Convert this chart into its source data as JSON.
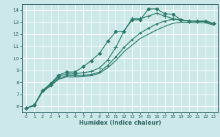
{
  "background_color": "#cce8e8",
  "grid_color": "#ffffff",
  "line_color": "#2a7a6a",
  "xlabel": "Humidex (Indice chaleur)",
  "xlim": [
    -0.5,
    23.5
  ],
  "ylim": [
    5.5,
    14.5
  ],
  "yticks": [
    6,
    7,
    8,
    9,
    10,
    11,
    12,
    13,
    14
  ],
  "xticks": [
    0,
    1,
    2,
    3,
    4,
    5,
    6,
    7,
    8,
    9,
    10,
    11,
    12,
    13,
    14,
    15,
    16,
    17,
    18,
    19,
    20,
    21,
    22,
    23
  ],
  "series": [
    {
      "x": [
        0,
        1,
        2,
        3,
        4,
        5,
        6,
        7,
        8,
        9,
        10,
        11,
        12,
        13,
        14,
        15,
        16,
        17,
        18,
        19,
        20,
        21,
        22,
        23
      ],
      "y": [
        5.85,
        6.1,
        7.3,
        7.9,
        8.6,
        8.85,
        8.85,
        9.3,
        9.8,
        10.4,
        11.4,
        12.2,
        12.25,
        13.2,
        13.2,
        14.1,
        14.1,
        13.7,
        13.65,
        13.2,
        13.1,
        13.1,
        13.1,
        12.9
      ],
      "marker": "D",
      "markersize": 2.5,
      "linestyle": "-",
      "linewidth": 0.9
    },
    {
      "x": [
        0,
        1,
        2,
        3,
        4,
        5,
        6,
        7,
        8,
        9,
        10,
        11,
        12,
        13,
        14,
        15,
        16,
        17,
        18,
        19,
        20,
        21,
        22,
        23
      ],
      "y": [
        5.85,
        6.1,
        7.3,
        7.8,
        8.5,
        8.7,
        8.7,
        8.8,
        8.9,
        9.2,
        9.85,
        10.9,
        12.25,
        13.3,
        13.3,
        13.5,
        13.75,
        13.5,
        13.3,
        13.15,
        13.1,
        13.1,
        13.1,
        12.88
      ],
      "marker": "+",
      "markersize": 4,
      "linestyle": "-",
      "linewidth": 0.9
    },
    {
      "x": [
        0,
        1,
        2,
        3,
        4,
        5,
        6,
        7,
        8,
        9,
        10,
        11,
        12,
        13,
        14,
        15,
        16,
        17,
        18,
        19,
        20,
        21,
        22,
        23
      ],
      "y": [
        5.85,
        6.05,
        7.25,
        7.75,
        8.35,
        8.55,
        8.55,
        8.6,
        8.65,
        8.85,
        9.4,
        10.1,
        10.9,
        11.55,
        12.1,
        12.5,
        12.85,
        13.1,
        13.25,
        13.2,
        13.1,
        13.05,
        13.05,
        12.82
      ],
      "marker": "D",
      "markersize": 1.5,
      "linestyle": "-",
      "linewidth": 0.9
    },
    {
      "x": [
        0,
        1,
        2,
        3,
        4,
        5,
        6,
        7,
        8,
        9,
        10,
        11,
        12,
        13,
        14,
        15,
        16,
        17,
        18,
        19,
        20,
        21,
        22,
        23
      ],
      "y": [
        5.85,
        6.05,
        7.2,
        7.7,
        8.25,
        8.45,
        8.45,
        8.5,
        8.55,
        8.75,
        9.2,
        9.8,
        10.55,
        11.1,
        11.65,
        12.0,
        12.35,
        12.65,
        12.9,
        13.0,
        12.98,
        12.95,
        12.95,
        12.75
      ],
      "marker": null,
      "markersize": 2,
      "linestyle": "-",
      "linewidth": 0.9
    }
  ]
}
